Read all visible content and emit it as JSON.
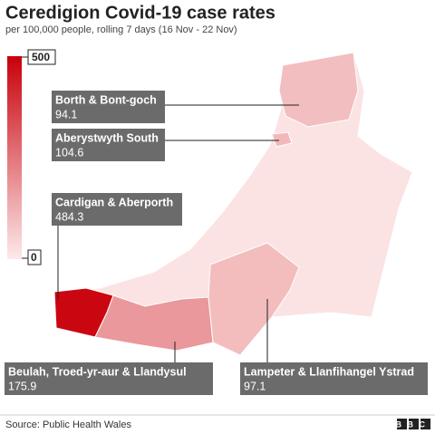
{
  "header": {
    "title": "Ceredigion Covid-19 case rates",
    "subtitle": "per 100,000 people, rolling 7 days (16 Nov - 22 Nov)"
  },
  "legend": {
    "max": 500,
    "min": 0
  },
  "areas": [
    {
      "name": "Borth & Bont-goch",
      "value": 94.1
    },
    {
      "name": "Aberystwyth South",
      "value": 104.6
    },
    {
      "name": "Cardigan & Aberporth",
      "value": 484.3
    },
    {
      "name": "Beulah, Troed-yr-aur & Llandysul",
      "value": 175.9
    },
    {
      "name": "Lampeter & Llanfihangel Ystrad",
      "value": 97.1
    }
  ],
  "footer": {
    "source": "Source: Public Health Wales",
    "brand": "BBC"
  }
}
